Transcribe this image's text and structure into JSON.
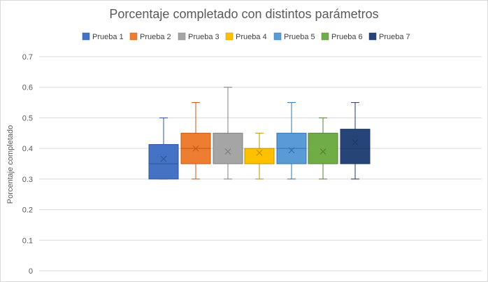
{
  "chart_data": {
    "type": "boxplot",
    "title": "Porcentaje completado con distintos parámetros",
    "xlabel": "",
    "ylabel": "Porcentaje completado",
    "ylim": [
      0,
      0.7
    ],
    "yticks": [
      0,
      0.1,
      0.2,
      0.3,
      0.4,
      0.5,
      0.6,
      0.7
    ],
    "ytick_labels": [
      "0",
      "0.1",
      "0.2",
      "0.3",
      "0.4",
      "0.5",
      "0.6",
      "0.7"
    ],
    "grid": true,
    "legend_position": "top-center",
    "series": [
      {
        "name": "Prueba 1",
        "color": "#4472C4",
        "stroke": "#2F5597",
        "min": 0.3,
        "q1": 0.3,
        "median": 0.35,
        "q3": 0.413,
        "max": 0.5,
        "mean": 0.366
      },
      {
        "name": "Prueba 2",
        "color": "#ED7D31",
        "stroke": "#C55A11",
        "min": 0.3,
        "q1": 0.35,
        "median": 0.4,
        "q3": 0.45,
        "max": 0.55,
        "mean": 0.4
      },
      {
        "name": "Prueba 3",
        "color": "#A5A5A5",
        "stroke": "#7F7F7F",
        "min": 0.3,
        "q1": 0.35,
        "median": 0.35,
        "q3": 0.45,
        "max": 0.6,
        "mean": 0.39
      },
      {
        "name": "Prueba 4",
        "color": "#FFC000",
        "stroke": "#BF9000",
        "min": 0.3,
        "q1": 0.35,
        "median": 0.35,
        "q3": 0.4,
        "max": 0.45,
        "mean": 0.386
      },
      {
        "name": "Prueba 5",
        "color": "#5B9BD5",
        "stroke": "#2E75B6",
        "min": 0.3,
        "q1": 0.35,
        "median": 0.4,
        "q3": 0.45,
        "max": 0.55,
        "mean": 0.394
      },
      {
        "name": "Prueba 6",
        "color": "#70AD47",
        "stroke": "#548235",
        "min": 0.3,
        "q1": 0.35,
        "median": 0.35,
        "q3": 0.45,
        "max": 0.5,
        "mean": 0.39
      },
      {
        "name": "Prueba 7",
        "color": "#264478",
        "stroke": "#1F3864",
        "min": 0.3,
        "q1": 0.35,
        "median": 0.4,
        "q3": 0.463,
        "max": 0.55,
        "mean": 0.42
      }
    ]
  }
}
